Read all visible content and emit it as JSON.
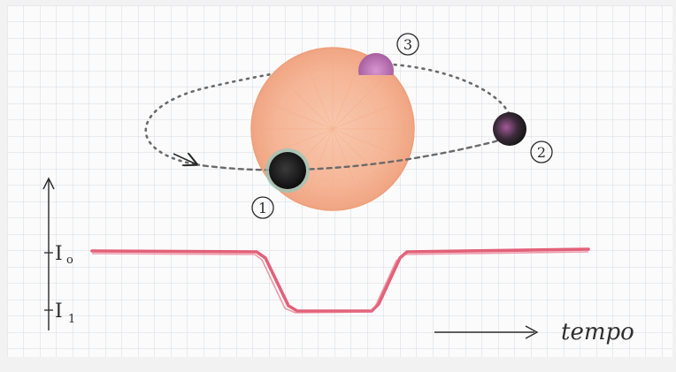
{
  "diagram": {
    "labels": {
      "intensity_high": "I",
      "intensity_high_sub": "o",
      "intensity_low": "I",
      "intensity_low_sub": "1",
      "time_axis": "tempo"
    },
    "planet_positions": [
      {
        "id": "1",
        "label": "1"
      },
      {
        "id": "2",
        "label": "2"
      },
      {
        "id": "3",
        "label": "3"
      }
    ],
    "colors": {
      "paper": "#fbfbfb",
      "grid": "#d4d9df",
      "star_fill": "#f6b89a",
      "star_stroke": "#ef9f7a",
      "orbit": "#6a6a6a",
      "planet_dark": "#1d1d1d",
      "planet_halo": "#7fc0b8",
      "planet_purple": "#b06aa8",
      "light_curve": "#e0506a",
      "ink": "#2a2a2a"
    }
  }
}
